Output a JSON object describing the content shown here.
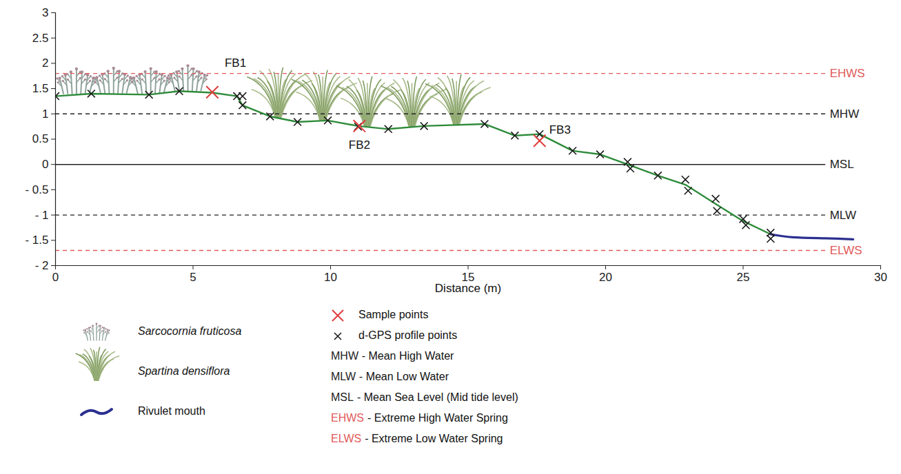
{
  "chart_data": {
    "type": "line",
    "xlabel": "Distance (m)",
    "xlim": [
      0,
      30
    ],
    "xticks": [
      0,
      5,
      10,
      15,
      20,
      25,
      30
    ],
    "ylim": [
      -2,
      3
    ],
    "yticks": [
      {
        "value": -2,
        "label": "- 2"
      },
      {
        "value": -1.5,
        "label": "- 1.5"
      },
      {
        "value": -1,
        "label": "- 1"
      },
      {
        "value": -0.5,
        "label": "- 0.5"
      },
      0,
      0.5,
      1,
      1.5,
      2,
      2.5,
      3
    ],
    "series": [
      {
        "type": "line",
        "color": "#2e8b3a",
        "x": [
          0,
          1.3,
          3.4,
          4.5,
          5.7,
          6.6,
          6.8,
          7.8,
          8.8,
          9.9,
          11,
          12.1,
          13.4,
          15.6,
          16.7,
          17.6,
          18.8,
          19.8,
          20.8,
          21.9,
          22.9,
          24,
          25,
          26
        ],
        "values": [
          1.35,
          1.4,
          1.38,
          1.45,
          1.42,
          1.35,
          1.17,
          0.95,
          0.84,
          0.87,
          0.76,
          0.7,
          0.76,
          0.8,
          0.57,
          0.6,
          0.27,
          0.2,
          0.0,
          -0.22,
          -0.4,
          -0.78,
          -1.12,
          -1.38
        ]
      },
      {
        "name": "Sample points",
        "type": "scatter",
        "marker": "x",
        "color": "#e03c3c",
        "x": [
          5.7,
          11.05,
          17.6
        ],
        "values": [
          1.43,
          0.76,
          0.47
        ],
        "labels": [
          "FB1",
          "FB2",
          "FB3"
        ]
      },
      {
        "name": "d-GPS profile points",
        "type": "scatter",
        "marker": "x",
        "color": "#1a1a1a",
        "x": [
          0,
          1.3,
          3.4,
          4.5,
          6.6,
          6.8,
          6.8,
          7.8,
          8.8,
          9.9,
          11,
          12.1,
          13.4,
          15.6,
          16.7,
          17.6,
          18.8,
          19.8,
          20.8,
          20.9,
          21.9,
          22.9,
          23.0,
          24.0,
          24.05,
          25.0,
          25.1,
          26.0,
          26.0
        ],
        "values": [
          1.35,
          1.4,
          1.38,
          1.45,
          1.35,
          1.35,
          1.17,
          0.95,
          0.84,
          0.87,
          0.75,
          0.7,
          0.76,
          0.8,
          0.57,
          0.6,
          0.27,
          0.2,
          0.05,
          -0.08,
          -0.22,
          -0.3,
          -0.52,
          -0.68,
          -0.92,
          -1.08,
          -1.2,
          -1.35,
          -1.47
        ]
      },
      {
        "name": "Rivulet mouth",
        "type": "line",
        "color": "#2b2f8f",
        "x": [
          26,
          26.8,
          28,
          29
        ],
        "values": [
          -1.38,
          -1.44,
          -1.46,
          -1.48
        ]
      }
    ],
    "reference_lines": [
      {
        "label": "EHWS",
        "value": 1.8,
        "color": "#e05a5a",
        "line_style": "dashed",
        "extent": [
          0,
          28
        ]
      },
      {
        "label": "MHW",
        "value": 1,
        "color": "#222222",
        "line_style": "dashed",
        "extent": [
          0,
          28
        ]
      },
      {
        "label": "MSL",
        "value": 0,
        "color": "#222222",
        "line_style": "solid",
        "extent": [
          0,
          28
        ]
      },
      {
        "label": "MLW",
        "value": -1,
        "color": "#222222",
        "line_style": "dashed",
        "extent": [
          0,
          28
        ]
      },
      {
        "label": "ELWS",
        "value": -1.7,
        "color": "#e05a5a",
        "line_style": "dashed",
        "extent": [
          0,
          28
        ]
      }
    ],
    "vegetation": [
      {
        "name": "Sarcocornia fruticosa",
        "x": [
          0.1,
          5.5
        ]
      },
      {
        "name": "Spartina densiflora",
        "x": [
          7.3,
          15.4
        ]
      }
    ],
    "definitions": [
      {
        "label": "MHW",
        "text": "- Mean High Water"
      },
      {
        "label": "MLW",
        "text": "- Mean Low Water"
      },
      {
        "label": "MSL",
        "text": "- Mean Sea Level (Mid tide level)"
      },
      {
        "label": "EHWS",
        "text": "- Extreme High Water Spring"
      },
      {
        "label": "ELWS",
        "text": "- Extreme Low Water Spring"
      }
    ],
    "legend": "bottom"
  }
}
